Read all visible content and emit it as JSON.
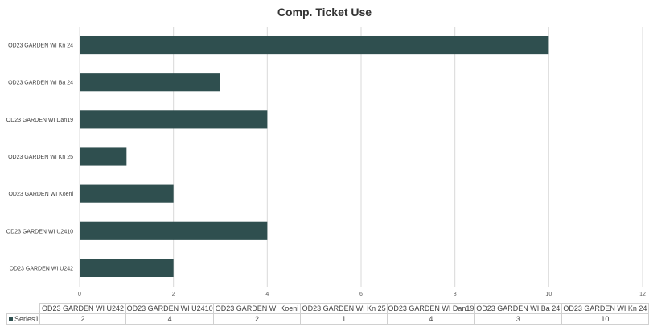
{
  "chart_data": {
    "type": "bar",
    "orientation": "horizontal",
    "title": "Comp. Ticket Use",
    "categories": [
      "OD23 GARDEN WI U242",
      "OD23 GARDEN WI U2410",
      "OD23 GARDEN WI Koeni",
      "OD23 GARDEN WI Kn 25",
      "OD23 GARDEN WI Dan19",
      "OD23 GARDEN WI Ba 24",
      "OD23 GARDEN WI Kn 24"
    ],
    "axis_categories": [
      "OD23 GARDEN WI Kn 24",
      "OD23 GARDEN WI Ba 24",
      "OD23 GARDEN WI Dan19",
      "OD23 GARDEN WI Kn 25",
      "OD23 GARDEN WI Koeni",
      "OD23 GARDEN WI U2410",
      "OD23 GARDEN WI U242"
    ],
    "series": [
      {
        "name": "Series1",
        "values": [
          2,
          4,
          2,
          1,
          4,
          3,
          10
        ],
        "color": "#2f4f4f"
      }
    ],
    "xlim": [
      0,
      12
    ],
    "xticks": [
      0,
      2,
      4,
      6,
      8,
      10,
      12
    ],
    "grid": true,
    "legend": "data-table"
  }
}
